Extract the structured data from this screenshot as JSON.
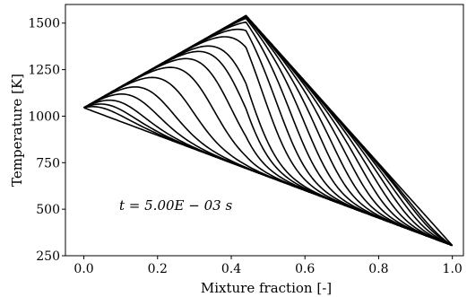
{
  "chart_data": {
    "type": "line",
    "xlabel": "Mixture fraction [-]",
    "ylabel": "Temperature [K]",
    "annotation": "t = 5.00E − 03 s",
    "xlim": [
      -0.05,
      1.03
    ],
    "ylim": [
      250,
      1600
    ],
    "x_ticks": [
      0.0,
      0.2,
      0.4,
      0.6,
      0.8,
      1.0
    ],
    "x_tick_labels": [
      "0.0",
      "0.2",
      "0.4",
      "0.6",
      "0.8",
      "1.0"
    ],
    "y_ticks": [
      250,
      500,
      750,
      1000,
      1250,
      1500
    ],
    "y_tick_labels": [
      "250",
      "500",
      "750",
      "1000",
      "1250",
      "1500"
    ],
    "grid": false,
    "legend": "none",
    "line_color": "#000000",
    "profile_model": {
      "t_fuel_side": 1045,
      "t_oxidizer_side": 305,
      "equilibrium_peak_temperature": 1540,
      "equilibrium_peak_mixture_fraction": 0.44,
      "curve_peak_mixture_fractions": [
        0.03,
        0.07,
        0.11,
        0.16,
        0.21,
        0.27,
        0.33,
        0.38,
        0.42,
        0.45,
        0.5,
        0.54,
        0.58,
        0.62,
        0.66,
        0.7,
        0.74,
        0.78,
        0.82,
        0.86,
        0.9,
        0.94,
        0.97
      ]
    }
  }
}
